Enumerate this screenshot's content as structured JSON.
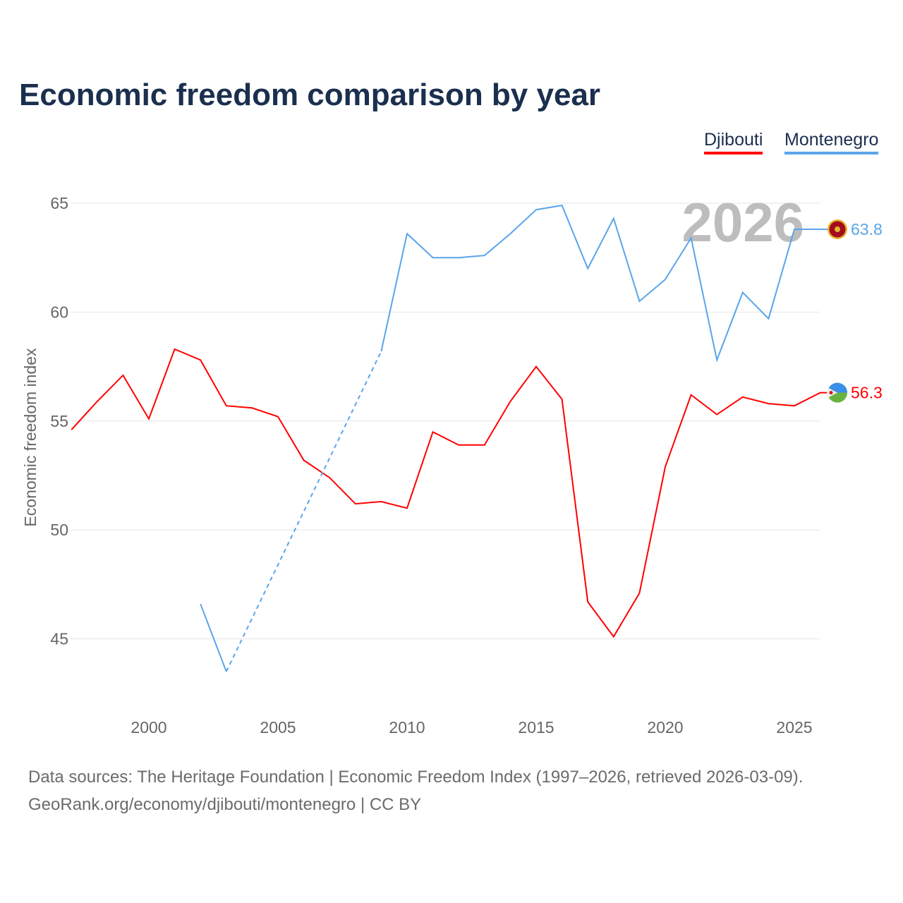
{
  "chart_data": {
    "type": "line",
    "title": "Economic freedom comparison by year",
    "xlabel": "",
    "ylabel": "Economic freedom index",
    "xlim": [
      1997,
      2026
    ],
    "ylim": [
      42,
      66.5
    ],
    "yticks": [
      45,
      50,
      55,
      60,
      65
    ],
    "xticks": [
      2000,
      2005,
      2010,
      2015,
      2020,
      2025
    ],
    "grid": true,
    "legend_position": "top-right",
    "watermark_year": "2026",
    "series": [
      {
        "name": "Djibouti",
        "color": "#ff0000",
        "end_label": "56.3",
        "x": [
          1997,
          1998,
          1999,
          2000,
          2001,
          2002,
          2003,
          2004,
          2005,
          2006,
          2007,
          2008,
          2009,
          2010,
          2011,
          2012,
          2013,
          2014,
          2015,
          2016,
          2017,
          2018,
          2019,
          2020,
          2021,
          2022,
          2023,
          2024,
          2025,
          2026
        ],
        "y": [
          54.6,
          55.9,
          57.1,
          55.1,
          58.3,
          57.8,
          55.7,
          55.6,
          55.2,
          53.2,
          52.4,
          51.2,
          51.3,
          51.0,
          54.5,
          53.9,
          53.9,
          55.9,
          57.5,
          56.0,
          46.7,
          45.1,
          47.1,
          52.9,
          56.2,
          55.3,
          56.1,
          55.8,
          55.7,
          56.3
        ]
      },
      {
        "name": "Montenegro",
        "color": "#5aa5ea",
        "end_label": "63.8",
        "x": [
          2002,
          2003,
          2009,
          2010,
          2011,
          2012,
          2013,
          2014,
          2015,
          2016,
          2017,
          2018,
          2019,
          2020,
          2021,
          2022,
          2023,
          2024,
          2025,
          2026
        ],
        "y": [
          46.6,
          43.5,
          58.2,
          63.6,
          62.5,
          62.5,
          62.6,
          63.6,
          64.7,
          64.9,
          62.0,
          64.3,
          60.5,
          61.5,
          63.4,
          57.8,
          60.9,
          59.7,
          63.8,
          63.8
        ],
        "missing_years_dashed": [
          2003,
          2009
        ]
      }
    ]
  },
  "footer": {
    "line1": "Data sources: The Heritage Foundation | Economic Freedom Index (1997–2026, retrieved 2026-03-09).",
    "line2": "GeoRank.org/economy/djibouti/montenegro | CC BY"
  }
}
